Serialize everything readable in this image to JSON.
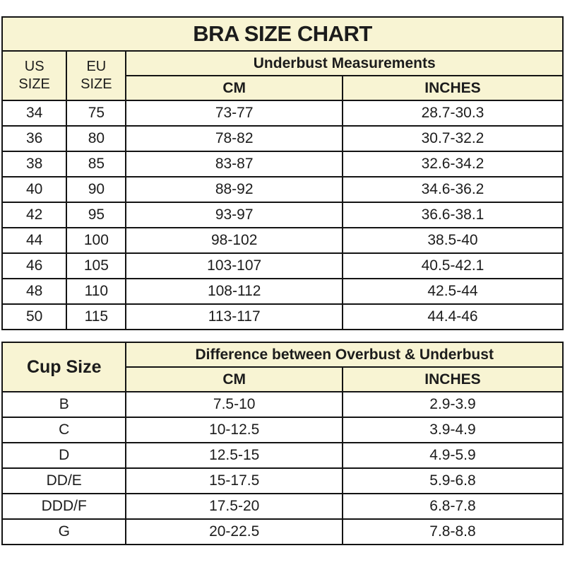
{
  "colors": {
    "header_bg": "#f8f4d3",
    "border": "#141414",
    "text": "#1c1c1c",
    "page_bg": "#ffffff"
  },
  "size_chart": {
    "title": "BRA SIZE CHART",
    "col_us": "US\nSIZE",
    "col_eu": "EU\nSIZE",
    "group_header": "Underbust Measurements",
    "col_cm": "CM",
    "col_inches": "INCHES",
    "rows": [
      [
        "34",
        "75",
        "73-77",
        "28.7-30.3"
      ],
      [
        "36",
        "80",
        "78-82",
        "30.7-32.2"
      ],
      [
        "38",
        "85",
        "83-87",
        "32.6-34.2"
      ],
      [
        "40",
        "90",
        "88-92",
        "34.6-36.2"
      ],
      [
        "42",
        "95",
        "93-97",
        "36.6-38.1"
      ],
      [
        "44",
        "100",
        "98-102",
        "38.5-40"
      ],
      [
        "46",
        "105",
        "103-107",
        "40.5-42.1"
      ],
      [
        "48",
        "110",
        "108-112",
        "42.5-44"
      ],
      [
        "50",
        "115",
        "113-117",
        "44.4-46"
      ]
    ]
  },
  "cup_chart": {
    "col_cup": "Cup Size",
    "group_header": "Difference between Overbust & Underbust",
    "col_cm": "CM",
    "col_inches": "INCHES",
    "rows": [
      [
        "B",
        "7.5-10",
        "2.9-3.9"
      ],
      [
        "C",
        "10-12.5",
        "3.9-4.9"
      ],
      [
        "D",
        "12.5-15",
        "4.9-5.9"
      ],
      [
        "DD/E",
        "15-17.5",
        "5.9-6.8"
      ],
      [
        "DDD/F",
        "17.5-20",
        "6.8-7.8"
      ],
      [
        "G",
        "20-22.5",
        "7.8-8.8"
      ]
    ]
  }
}
